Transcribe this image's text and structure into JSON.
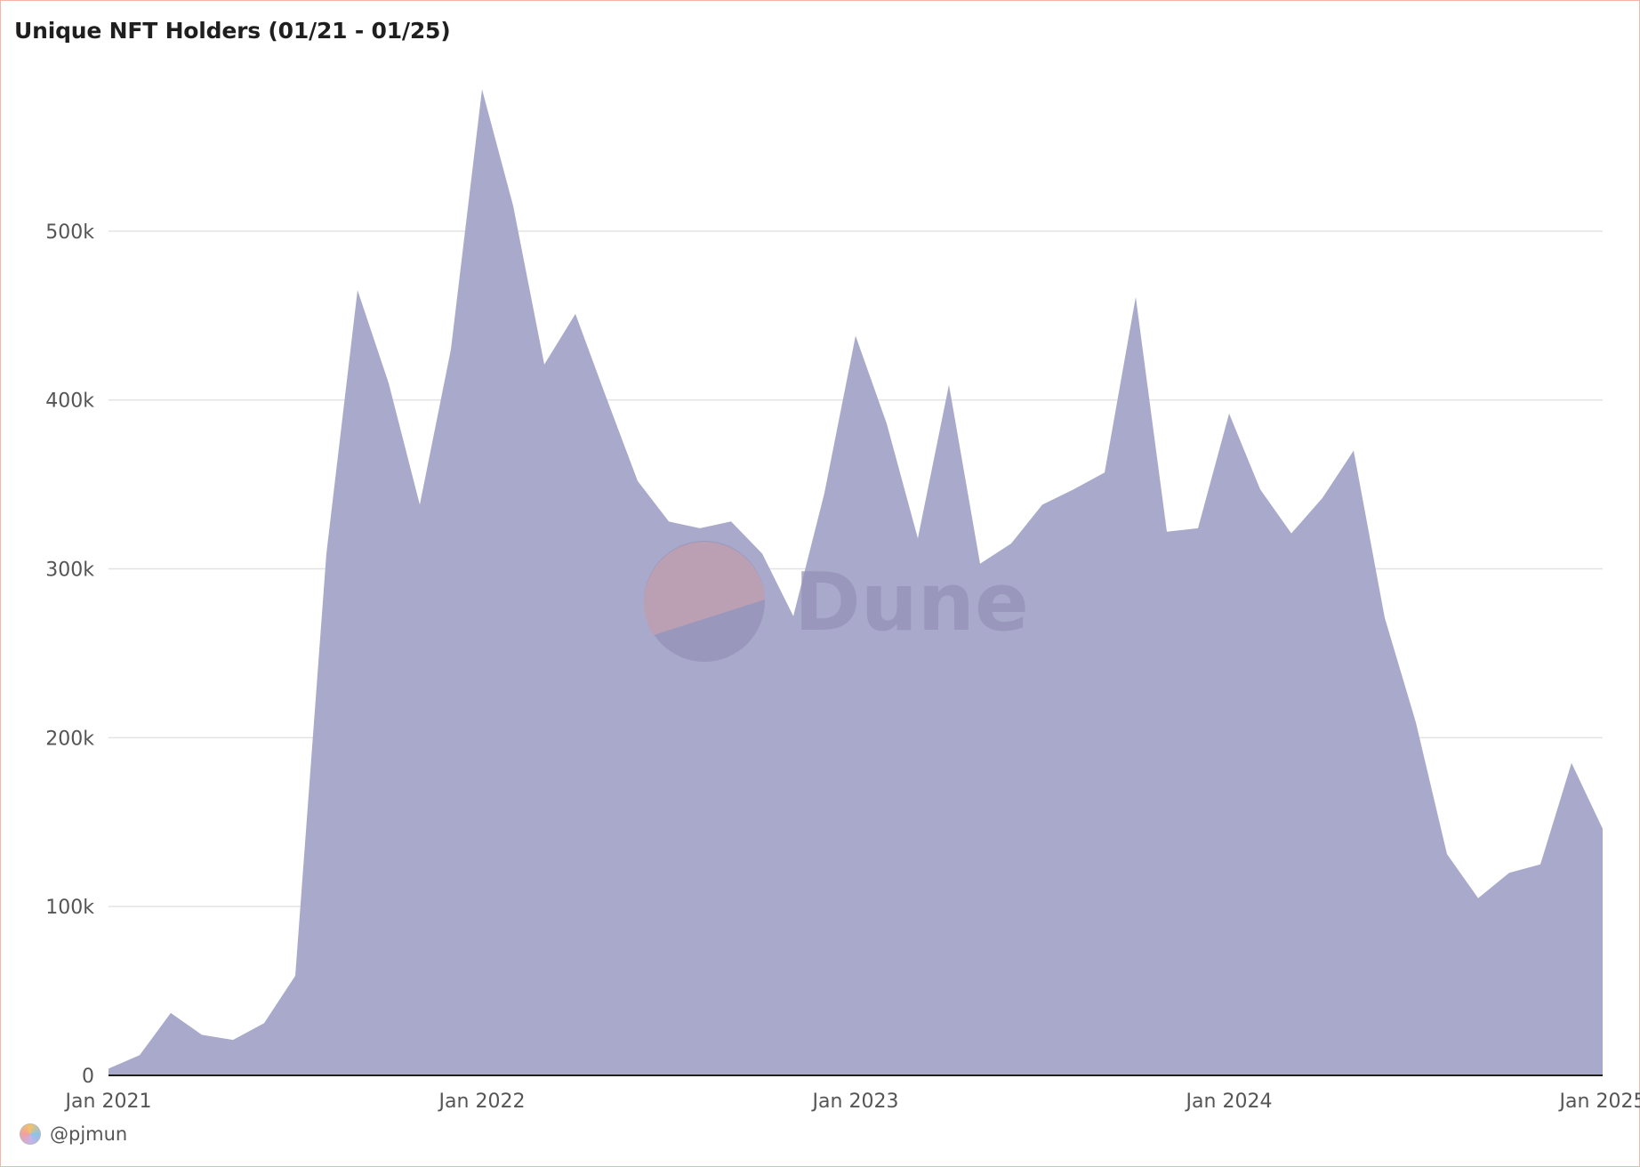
{
  "chart_data": {
    "type": "area",
    "title": "Unique NFT Holders (01/21 - 01/25)",
    "xlabel": "",
    "ylabel": "",
    "x_tick_labels": [
      "Jan 2021",
      "Jan 2022",
      "Jan 2023",
      "Jan 2024",
      "Jan 2025"
    ],
    "y_tick_labels": [
      "0",
      "100k",
      "200k",
      "300k",
      "400k",
      "500k"
    ],
    "ylim": [
      0,
      600000
    ],
    "grid": true,
    "legend": "none",
    "color": "#a9aacb",
    "x": [
      "2021-01",
      "2021-02",
      "2021-03",
      "2021-04",
      "2021-05",
      "2021-06",
      "2021-07",
      "2021-08",
      "2021-09",
      "2021-10",
      "2021-11",
      "2021-12",
      "2022-01",
      "2022-02",
      "2022-03",
      "2022-04",
      "2022-05",
      "2022-06",
      "2022-07",
      "2022-08",
      "2022-09",
      "2022-10",
      "2022-11",
      "2022-12",
      "2023-01",
      "2023-02",
      "2023-03",
      "2023-04",
      "2023-05",
      "2023-06",
      "2023-07",
      "2023-08",
      "2023-09",
      "2023-10",
      "2023-11",
      "2023-12",
      "2024-01",
      "2024-02",
      "2024-03",
      "2024-04",
      "2024-05",
      "2024-06",
      "2024-07",
      "2024-08",
      "2024-09",
      "2024-10",
      "2024-11",
      "2024-12",
      "2025-01"
    ],
    "values": [
      4000,
      12000,
      37000,
      24000,
      21000,
      31000,
      59000,
      309000,
      465000,
      410000,
      338000,
      430000,
      584000,
      515000,
      421000,
      451000,
      401000,
      352000,
      328000,
      324000,
      328000,
      309000,
      272000,
      345000,
      438000,
      386000,
      318000,
      409000,
      303000,
      315000,
      338000,
      347000,
      357000,
      461000,
      322000,
      324000,
      392000,
      347000,
      321000,
      342000,
      370000,
      271000,
      209000,
      131000,
      105000,
      120000,
      125000,
      185000,
      146000
    ]
  },
  "watermark": {
    "text": "Dune"
  },
  "footer": {
    "author": "@pjmun"
  }
}
